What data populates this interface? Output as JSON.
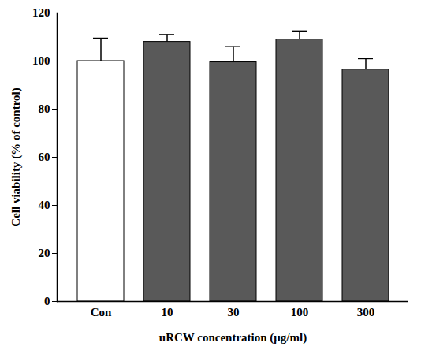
{
  "chart_data": {
    "type": "bar",
    "x_label": "uRCW concentration (μg/ml)",
    "y_label": "Cell viability (% of control)",
    "categories": [
      "Con",
      "10",
      "30",
      "100",
      "300"
    ],
    "values": [
      100,
      108,
      99.5,
      109,
      96.5
    ],
    "errors": [
      9.5,
      3,
      6.5,
      3.5,
      4.5
    ],
    "colors": [
      "#ffffff",
      "#595959",
      "#595959",
      "#595959",
      "#595959"
    ],
    "ylim": [
      0,
      120
    ],
    "yticks": [
      0,
      20,
      40,
      60,
      80,
      100,
      120
    ],
    "grid": false
  }
}
